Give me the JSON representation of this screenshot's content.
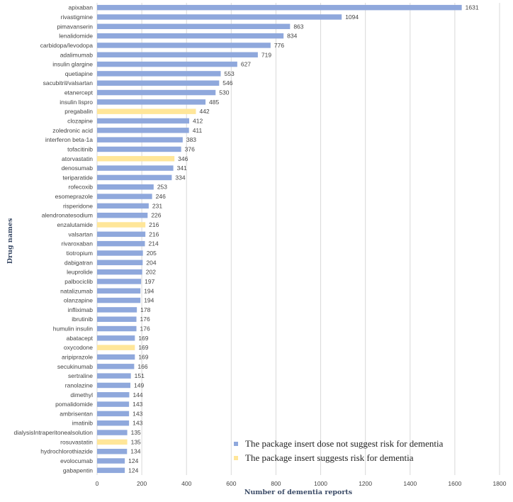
{
  "chart_data": {
    "type": "bar",
    "orientation": "horizontal",
    "title": "",
    "xlabel": "Number of dementia reports",
    "ylabel": "Drug names",
    "xlim": [
      0,
      1800
    ],
    "xticks": [
      0,
      200,
      400,
      600,
      800,
      1000,
      1200,
      1400,
      1600,
      1800
    ],
    "grid": true,
    "legend_position": "bottom-right",
    "colors": {
      "no_risk": "#8fa8dc",
      "risk": "#ffe699"
    },
    "legend": [
      {
        "key": "no_risk",
        "label": "The package insert dose not suggest risk for dementia"
      },
      {
        "key": "risk",
        "label": "The package insert suggests risk for dementia"
      }
    ],
    "categories": [
      "apixaban",
      "rivastigmine",
      "pimavanserin",
      "lenalidomide",
      "carbidopa/levodopa",
      "adalimumab",
      "insulin glargine",
      "quetiapine",
      "sacubitril/valsartan",
      "etanercept",
      "insulin lispro",
      "pregabalin",
      "clozapine",
      "zoledronic acid",
      "interferon beta-1a",
      "tofacitinib",
      "atorvastatin",
      "denosumab",
      "teriparatide",
      "rofecoxib",
      "esomeprazole",
      "risperidone",
      "alendronatesodium",
      "enzalutamide",
      "valsartan",
      "rivaroxaban",
      "tiotropium",
      "dabigatran",
      "leuprolide",
      "palbociclib",
      "natalizumab",
      "olanzapine",
      "infliximab",
      "ibrutinib",
      "humulin insulin",
      "abatacept",
      "oxycodone",
      "aripiprazole",
      "secukinumab",
      "sertraline",
      "ranolazine",
      "dimethyl",
      "pomalidomide",
      "ambrisentan",
      "imatinib",
      "dialysisIntraperitonealsolution",
      "rosuvastatin",
      "hydrochlorothiazide",
      "evolocumab",
      "gabapentin"
    ],
    "values": [
      1631,
      1094,
      863,
      834,
      776,
      719,
      627,
      553,
      546,
      530,
      485,
      442,
      412,
      411,
      383,
      376,
      346,
      341,
      334,
      253,
      246,
      231,
      226,
      216,
      216,
      214,
      205,
      204,
      202,
      197,
      194,
      194,
      178,
      176,
      176,
      169,
      169,
      169,
      166,
      151,
      149,
      144,
      143,
      143,
      143,
      135,
      135,
      134,
      124,
      124
    ],
    "groups": [
      "no_risk",
      "no_risk",
      "no_risk",
      "no_risk",
      "no_risk",
      "no_risk",
      "no_risk",
      "no_risk",
      "no_risk",
      "no_risk",
      "no_risk",
      "risk",
      "no_risk",
      "no_risk",
      "no_risk",
      "no_risk",
      "risk",
      "no_risk",
      "no_risk",
      "no_risk",
      "no_risk",
      "no_risk",
      "no_risk",
      "risk",
      "no_risk",
      "no_risk",
      "no_risk",
      "no_risk",
      "no_risk",
      "no_risk",
      "no_risk",
      "no_risk",
      "no_risk",
      "no_risk",
      "no_risk",
      "no_risk",
      "risk",
      "no_risk",
      "no_risk",
      "no_risk",
      "no_risk",
      "no_risk",
      "no_risk",
      "no_risk",
      "no_risk",
      "no_risk",
      "risk",
      "no_risk",
      "no_risk",
      "no_risk"
    ]
  }
}
